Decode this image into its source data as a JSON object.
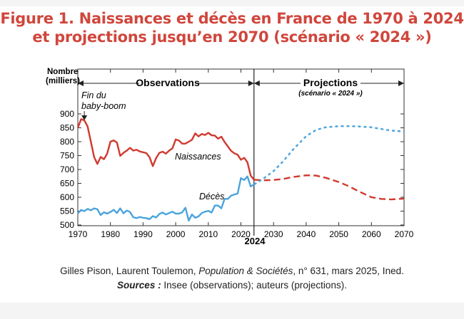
{
  "title": {
    "line1": "Figure 1. Naissances et décès en France de 1970 à 2024",
    "line2": "et projections jusqu’en 2070 (scénario « 2024 »)"
  },
  "credit": {
    "authors": "Gilles Pison, Laurent Toulemon, ",
    "journal": "Population & Sociétés",
    "issue": ", n° 631, mars 2025, Ined.",
    "sources_label": "Sources :",
    "sources_text": " Insee (observations); auteurs (projections)."
  },
  "chart_data": {
    "type": "line",
    "ylabel_line1": "Nombre",
    "ylabel_line2": "(milliers)",
    "xlim": [
      1970,
      2070
    ],
    "ylim": [
      500,
      900
    ],
    "yticks": [
      500,
      550,
      600,
      650,
      700,
      750,
      800,
      850,
      900
    ],
    "xticks": [
      1970,
      1980,
      1990,
      2000,
      2010,
      2020,
      2030,
      2040,
      2050,
      2060,
      2070
    ],
    "divider_year": 2024,
    "divider_label": "2024",
    "periods": {
      "observations": "Observations",
      "projections": "Projections",
      "projections_sub": "(scénario « 2024 »)"
    },
    "annotations": {
      "babyboom_line1": "Fin du",
      "babyboom_line2": "baby-boom",
      "babyboom_year": 1972
    },
    "colors": {
      "births": "#d0392e",
      "deaths": "#4aa3dc"
    },
    "series": [
      {
        "name": "Naissances",
        "style": "solid",
        "color": "#d0392e",
        "x": [
          1970,
          1971,
          1972,
          1973,
          1974,
          1975,
          1976,
          1977,
          1978,
          1979,
          1980,
          1981,
          1982,
          1983,
          1984,
          1985,
          1986,
          1987,
          1988,
          1989,
          1990,
          1991,
          1992,
          1993,
          1994,
          1995,
          1996,
          1997,
          1998,
          1999,
          2000,
          2001,
          2002,
          2003,
          2004,
          2005,
          2006,
          2007,
          2008,
          2009,
          2010,
          2011,
          2012,
          2013,
          2014,
          2015,
          2016,
          2017,
          2018,
          2019,
          2020,
          2021,
          2022,
          2023,
          2024
        ],
        "y": [
          850,
          881,
          877,
          855,
          800,
          745,
          720,
          745,
          737,
          757,
          800,
          805,
          797,
          749,
          760,
          768,
          778,
          768,
          771,
          765,
          762,
          759,
          744,
          712,
          741,
          760,
          764,
          757,
          768,
          776,
          808,
          804,
          793,
          793,
          800,
          807,
          830,
          819,
          828,
          824,
          832,
          823,
          822,
          811,
          818,
          799,
          783,
          767,
          758,
          753,
          735,
          742,
          726,
          678,
          663
        ]
      },
      {
        "name": "Décès",
        "style": "solid",
        "color": "#4aa3dc",
        "x": [
          1970,
          1971,
          1972,
          1973,
          1974,
          1975,
          1976,
          1977,
          1978,
          1979,
          1980,
          1981,
          1982,
          1983,
          1984,
          1985,
          1986,
          1987,
          1988,
          1989,
          1990,
          1991,
          1992,
          1993,
          1994,
          1995,
          1996,
          1997,
          1998,
          1999,
          2000,
          2001,
          2002,
          2003,
          2004,
          2005,
          2006,
          2007,
          2008,
          2009,
          2010,
          2011,
          2012,
          2013,
          2014,
          2015,
          2016,
          2017,
          2018,
          2019,
          2020,
          2021,
          2022,
          2023,
          2024
        ],
        "y": [
          542,
          554,
          550,
          558,
          553,
          560,
          557,
          536,
          546,
          541,
          547,
          555,
          543,
          560,
          542,
          552,
          547,
          528,
          525,
          529,
          526,
          525,
          521,
          532,
          527,
          540,
          545,
          538,
          543,
          548,
          541,
          541,
          546,
          562,
          516,
          538,
          526,
          531,
          543,
          548,
          551,
          545,
          570,
          570,
          560,
          594,
          594,
          606,
          610,
          613,
          669,
          662,
          675,
          639,
          646
        ]
      },
      {
        "style": "dashed",
        "color": "#d0392e",
        "x": [
          2024,
          2027,
          2030,
          2033,
          2036,
          2040,
          2043,
          2046,
          2050,
          2053,
          2056,
          2060,
          2063,
          2066,
          2070
        ],
        "y": [
          663,
          661,
          662,
          666,
          673,
          679,
          678,
          670,
          655,
          640,
          622,
          600,
          594,
          592,
          595
        ]
      },
      {
        "style": "dotted",
        "color": "#4aa3dc",
        "x": [
          2024,
          2027,
          2030,
          2033,
          2036,
          2040,
          2043,
          2046,
          2050,
          2053,
          2056,
          2060,
          2063,
          2066,
          2070
        ],
        "y": [
          646,
          668,
          694,
          730,
          772,
          820,
          842,
          852,
          856,
          856,
          855,
          852,
          846,
          840,
          837
        ]
      }
    ],
    "series_labels": {
      "births": "Naissances",
      "deaths": "Décès"
    },
    "grid": false
  }
}
